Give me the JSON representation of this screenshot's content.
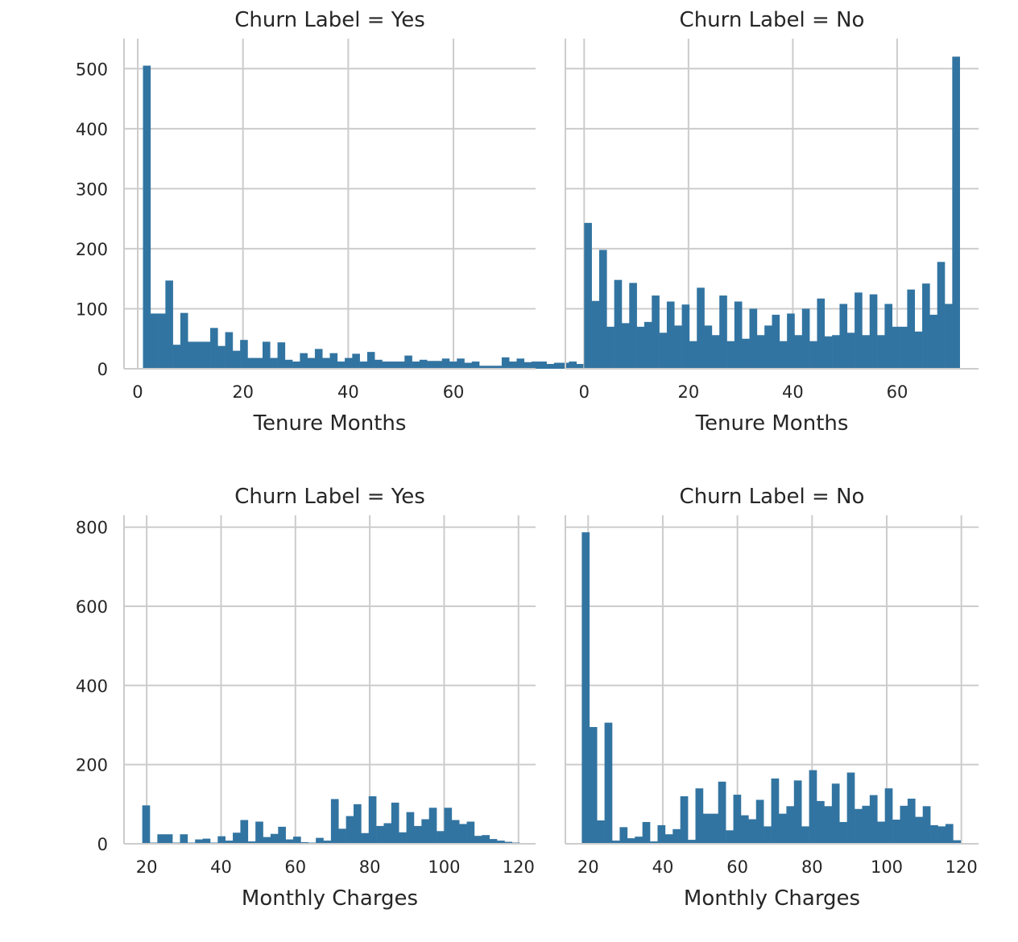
{
  "chart_data": [
    {
      "type": "bar",
      "title": "Churn Label = Yes",
      "xlabel": "Tenure Months",
      "ylabel": "",
      "xlim": [
        -2.6,
        75.6
      ],
      "ylim": [
        0,
        550
      ],
      "xticks": [
        0,
        20,
        40,
        60
      ],
      "yticks": [
        0,
        100,
        200,
        300,
        400,
        500
      ],
      "show_yticks": true,
      "grid": true,
      "color": "#3274a1",
      "bins": {
        "start": 1,
        "width": 1.42
      },
      "values": [
        505,
        92,
        92,
        147,
        40,
        93,
        45,
        45,
        45,
        68,
        38,
        61,
        30,
        48,
        18,
        18,
        45,
        18,
        44,
        15,
        12,
        26,
        18,
        33,
        18,
        26,
        12,
        18,
        25,
        12,
        28,
        15,
        12,
        12,
        12,
        22,
        12,
        15,
        13,
        13,
        17,
        12,
        17,
        10,
        12,
        5,
        5,
        5,
        19,
        12,
        17,
        11,
        12,
        12,
        8,
        10,
        10,
        12,
        8,
        6
      ]
    },
    {
      "type": "bar",
      "title": "Churn Label = No",
      "xlabel": "Tenure Months",
      "ylabel": "",
      "xlim": [
        -3.6,
        75.6
      ],
      "ylim": [
        0,
        550
      ],
      "xticks": [
        0,
        20,
        40,
        60
      ],
      "yticks": [
        0,
        100,
        200,
        300,
        400,
        500
      ],
      "show_yticks": false,
      "grid": true,
      "color": "#3274a1",
      "bins": {
        "start": 0,
        "width": 1.44
      },
      "values": [
        243,
        113,
        198,
        70,
        148,
        76,
        143,
        70,
        78,
        122,
        60,
        112,
        72,
        107,
        46,
        135,
        72,
        56,
        122,
        46,
        112,
        50,
        100,
        56,
        72,
        90,
        46,
        92,
        56,
        100,
        46,
        117,
        54,
        56,
        108,
        60,
        127,
        56,
        124,
        56,
        108,
        70,
        70,
        132,
        62,
        142,
        90,
        178,
        108,
        520
      ]
    },
    {
      "type": "bar",
      "title": "Churn Label = Yes",
      "xlabel": "Monthly Charges",
      "ylabel": "",
      "xlim": [
        13.9,
        124.6
      ],
      "ylim": [
        0,
        830
      ],
      "xticks": [
        20,
        40,
        60,
        80,
        100,
        120
      ],
      "yticks": [
        0,
        200,
        400,
        600,
        800
      ],
      "show_yticks": true,
      "grid": true,
      "color": "#3274a1",
      "bins": {
        "start": 18.8,
        "width": 2.03
      },
      "values": [
        97,
        3,
        24,
        24,
        3,
        24,
        3,
        11,
        13,
        3,
        19,
        8,
        28,
        60,
        6,
        56,
        17,
        25,
        43,
        11,
        18,
        4,
        3,
        15,
        8,
        113,
        38,
        70,
        100,
        27,
        120,
        45,
        52,
        104,
        29,
        80,
        45,
        62,
        91,
        32,
        91,
        60,
        50,
        56,
        20,
        22,
        12,
        8,
        5,
        3,
        2,
        1
      ]
    },
    {
      "type": "bar",
      "title": "Churn Label = No",
      "xlabel": "Monthly Charges",
      "ylabel": "",
      "xlim": [
        13.9,
        124.6
      ],
      "ylim": [
        0,
        830
      ],
      "xticks": [
        20,
        40,
        60,
        80,
        100,
        120
      ],
      "yticks": [
        0,
        200,
        400,
        600,
        800
      ],
      "show_yticks": false,
      "grid": true,
      "color": "#3274a1",
      "bins": {
        "start": 18.3,
        "width": 2.03
      },
      "values": [
        787,
        295,
        59,
        306,
        8,
        42,
        14,
        18,
        55,
        6,
        47,
        24,
        37,
        120,
        10,
        140,
        76,
        76,
        157,
        34,
        124,
        72,
        62,
        111,
        44,
        165,
        76,
        95,
        160,
        44,
        186,
        108,
        95,
        152,
        55,
        180,
        88,
        96,
        123,
        56,
        140,
        61,
        96,
        114,
        68,
        95,
        47,
        44,
        50,
        9
      ]
    }
  ]
}
